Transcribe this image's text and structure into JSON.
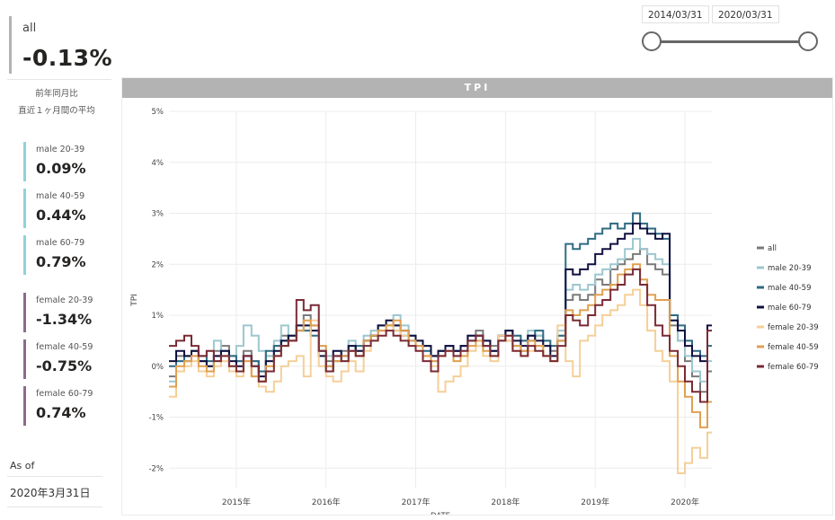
{
  "summary": {
    "label": "all",
    "value": "-0.13%",
    "note_line1": "前年同月比",
    "note_line2": "直近１ヶ月間の平均"
  },
  "kpis": [
    {
      "label": "male 20-39",
      "value": "0.09%"
    },
    {
      "label": "male 40-59",
      "value": "0.44%"
    },
    {
      "label": "male 60-79",
      "value": "0.79%"
    },
    {
      "label": "female 20-39",
      "value": "-1.34%"
    },
    {
      "label": "female 40-59",
      "value": "-0.75%"
    },
    {
      "label": "female 60-79",
      "value": "0.74%"
    }
  ],
  "as_of": {
    "label": "As of",
    "value": "2020年3月31日"
  },
  "date_range": {
    "start": "2014/03/31",
    "end": "2020/03/31"
  },
  "colors": {
    "male_accent": "#8fd3da",
    "female_accent": "#8b6a8c",
    "title_bar": "#b3b3b3"
  },
  "chart_data": {
    "type": "line",
    "title": "TPI",
    "xlabel": "DATE",
    "ylabel": "TPI",
    "ylim": [
      -2.4,
      5
    ],
    "yticks": [
      5,
      4,
      3,
      2,
      1,
      0,
      -1,
      -2
    ],
    "ytick_labels": [
      "5%",
      "4%",
      "3%",
      "2%",
      "1%",
      "0%",
      "-1%",
      "-2%"
    ],
    "xlim": [
      2014.25,
      2020.3
    ],
    "xticks": [
      2015,
      2016,
      2017,
      2018,
      2019,
      2020
    ],
    "xtick_labels": [
      "2015年",
      "2016年",
      "2017年",
      "2018年",
      "2019年",
      "2020年"
    ],
    "step": true,
    "grid": true,
    "legend_position": "right",
    "x": [
      2014.25,
      2014.33,
      2014.42,
      2014.5,
      2014.58,
      2014.67,
      2014.75,
      2014.83,
      2014.92,
      2015.0,
      2015.08,
      2015.17,
      2015.25,
      2015.33,
      2015.42,
      2015.5,
      2015.58,
      2015.67,
      2015.75,
      2015.83,
      2015.92,
      2016.0,
      2016.08,
      2016.17,
      2016.25,
      2016.33,
      2016.42,
      2016.5,
      2016.58,
      2016.67,
      2016.75,
      2016.83,
      2016.92,
      2017.0,
      2017.08,
      2017.17,
      2017.25,
      2017.33,
      2017.42,
      2017.5,
      2017.58,
      2017.67,
      2017.75,
      2017.83,
      2017.92,
      2018.0,
      2018.08,
      2018.17,
      2018.25,
      2018.33,
      2018.42,
      2018.5,
      2018.58,
      2018.67,
      2018.75,
      2018.83,
      2018.92,
      2019.0,
      2019.08,
      2019.17,
      2019.25,
      2019.33,
      2019.42,
      2019.5,
      2019.58,
      2019.67,
      2019.75,
      2019.83,
      2019.92,
      2020.0,
      2020.08,
      2020.17,
      2020.25
    ],
    "series": [
      {
        "name": "all",
        "color": "#7a7a7a",
        "values": [
          -0.2,
          0.2,
          0.1,
          0.3,
          0.1,
          0.0,
          0.3,
          0.4,
          0.2,
          0.1,
          0.3,
          0.1,
          -0.1,
          0.2,
          0.4,
          0.6,
          0.5,
          0.8,
          1.0,
          0.8,
          0.3,
          0.1,
          0.2,
          0.3,
          0.4,
          0.2,
          0.5,
          0.6,
          0.7,
          0.8,
          0.8,
          0.7,
          0.6,
          0.5,
          0.4,
          0.2,
          0.3,
          0.4,
          0.3,
          0.4,
          0.6,
          0.7,
          0.5,
          0.4,
          0.6,
          0.5,
          0.4,
          0.3,
          0.5,
          0.6,
          0.4,
          0.3,
          0.6,
          1.3,
          1.4,
          1.3,
          1.4,
          1.7,
          1.6,
          1.9,
          2.0,
          2.1,
          2.2,
          2.3,
          2.0,
          1.9,
          1.8,
          0.8,
          0.5,
          0.1,
          -0.2,
          -0.5,
          -0.1
        ]
      },
      {
        "name": "male 20-39",
        "color": "#9cc7cf",
        "values": [
          -0.3,
          0.1,
          0.2,
          0.3,
          0.2,
          0.3,
          0.5,
          0.3,
          0.2,
          0.4,
          0.8,
          0.6,
          0.3,
          0.2,
          0.5,
          0.8,
          0.6,
          0.7,
          0.8,
          0.7,
          0.4,
          0.2,
          0.3,
          0.1,
          0.5,
          0.3,
          0.6,
          0.7,
          0.8,
          0.9,
          1.0,
          0.8,
          0.6,
          0.5,
          0.3,
          0.1,
          0.2,
          0.3,
          0.2,
          0.3,
          0.5,
          0.6,
          0.4,
          0.3,
          0.5,
          0.7,
          0.6,
          0.5,
          0.7,
          0.6,
          0.5,
          0.4,
          0.7,
          1.5,
          1.6,
          1.5,
          1.6,
          1.8,
          1.9,
          2.0,
          2.1,
          2.3,
          2.5,
          2.3,
          2.2,
          2.1,
          2.0,
          0.9,
          0.5,
          0.2,
          -0.1,
          -0.3,
          0.1
        ]
      },
      {
        "name": "male 40-59",
        "color": "#2e6b82",
        "values": [
          0.0,
          0.1,
          0.2,
          0.3,
          0.2,
          0.1,
          0.2,
          0.3,
          0.2,
          0.1,
          0.2,
          0.1,
          -0.1,
          0.3,
          0.4,
          0.5,
          0.6,
          0.7,
          0.7,
          0.6,
          0.3,
          0.0,
          0.1,
          0.2,
          0.3,
          0.4,
          0.5,
          0.6,
          0.8,
          0.8,
          0.7,
          0.6,
          0.5,
          0.4,
          0.3,
          0.2,
          0.3,
          0.4,
          0.3,
          0.4,
          0.5,
          0.6,
          0.4,
          0.3,
          0.5,
          0.7,
          0.6,
          0.5,
          0.6,
          0.7,
          0.5,
          0.4,
          0.6,
          2.4,
          2.3,
          2.4,
          2.5,
          2.6,
          2.7,
          2.8,
          2.7,
          2.8,
          3.0,
          2.8,
          2.7,
          2.6,
          2.5,
          1.0,
          0.8,
          0.5,
          0.3,
          0.2,
          0.4
        ]
      },
      {
        "name": "male 60-79",
        "color": "#101040",
        "values": [
          0.1,
          0.3,
          0.2,
          0.3,
          0.1,
          0.0,
          0.2,
          0.3,
          0.1,
          0.0,
          0.2,
          0.0,
          -0.2,
          0.1,
          0.3,
          0.5,
          0.6,
          0.8,
          0.8,
          0.7,
          0.2,
          -0.1,
          0.3,
          0.2,
          0.4,
          0.3,
          0.5,
          0.6,
          0.8,
          0.9,
          0.8,
          0.7,
          0.6,
          0.5,
          0.4,
          0.2,
          0.3,
          0.4,
          0.3,
          0.4,
          0.6,
          0.6,
          0.5,
          0.3,
          0.6,
          0.7,
          0.5,
          0.4,
          0.6,
          0.5,
          0.4,
          0.2,
          0.5,
          1.9,
          1.8,
          1.9,
          2.0,
          2.2,
          2.3,
          2.4,
          2.5,
          2.6,
          2.8,
          2.7,
          2.6,
          2.5,
          2.6,
          0.9,
          0.7,
          0.4,
          0.2,
          0.1,
          0.8
        ]
      },
      {
        "name": "female 20-39",
        "color": "#f5cf98",
        "values": [
          -0.6,
          -0.1,
          0.0,
          0.1,
          -0.1,
          -0.2,
          0.0,
          0.1,
          -0.1,
          -0.2,
          0.1,
          -0.2,
          -0.4,
          -0.5,
          -0.3,
          0.0,
          0.1,
          0.2,
          -0.2,
          0.9,
          0.0,
          -0.2,
          -0.3,
          -0.1,
          0.1,
          -0.1,
          0.3,
          0.5,
          0.7,
          0.8,
          0.7,
          0.6,
          0.4,
          0.3,
          0.2,
          0.0,
          -0.5,
          -0.3,
          -0.2,
          0.0,
          0.3,
          0.4,
          0.2,
          0.1,
          0.6,
          0.5,
          0.3,
          0.2,
          0.3,
          0.4,
          0.2,
          0.1,
          0.8,
          0.1,
          -0.2,
          0.5,
          0.6,
          0.8,
          1.0,
          1.1,
          1.2,
          1.4,
          1.5,
          1.2,
          0.7,
          0.3,
          0.1,
          -0.3,
          -2.1,
          -1.9,
          -1.6,
          -1.8,
          -1.3
        ]
      },
      {
        "name": "female 40-59",
        "color": "#e0a050",
        "values": [
          -0.4,
          0.0,
          0.1,
          0.2,
          0.0,
          -0.1,
          0.1,
          0.2,
          0.0,
          -0.1,
          0.1,
          -0.2,
          -0.3,
          0.0,
          0.2,
          0.4,
          0.5,
          0.7,
          0.9,
          0.8,
          0.4,
          0.0,
          0.1,
          0.2,
          0.3,
          0.2,
          0.5,
          0.6,
          0.7,
          0.8,
          0.9,
          0.7,
          0.5,
          0.4,
          0.2,
          0.1,
          0.2,
          0.3,
          0.1,
          0.2,
          0.4,
          0.5,
          0.3,
          0.2,
          0.5,
          0.6,
          0.4,
          0.3,
          0.5,
          0.4,
          0.2,
          0.1,
          0.5,
          1.1,
          1.0,
          1.1,
          1.2,
          1.4,
          1.5,
          1.6,
          1.8,
          1.9,
          2.0,
          1.7,
          1.4,
          1.3,
          1.3,
          0.2,
          -0.3,
          -0.6,
          -0.9,
          -1.2,
          -0.7
        ]
      },
      {
        "name": "female 60-79",
        "color": "#7a2a34",
        "values": [
          0.4,
          0.5,
          0.6,
          0.4,
          0.2,
          0.3,
          0.1,
          0.2,
          0.0,
          -0.1,
          0.2,
          0.0,
          -0.3,
          -0.1,
          0.2,
          0.4,
          0.5,
          1.3,
          1.1,
          1.2,
          0.3,
          -0.1,
          0.2,
          0.1,
          0.3,
          0.2,
          0.4,
          0.5,
          0.6,
          0.7,
          0.6,
          0.5,
          0.4,
          0.3,
          0.1,
          -0.1,
          0.2,
          0.3,
          0.2,
          0.3,
          0.5,
          0.6,
          0.4,
          0.2,
          0.5,
          0.6,
          0.3,
          0.2,
          0.4,
          0.3,
          0.2,
          0.1,
          0.4,
          1.0,
          0.9,
          0.8,
          1.0,
          1.2,
          1.3,
          1.5,
          1.6,
          1.8,
          1.9,
          1.6,
          1.2,
          0.8,
          0.6,
          0.3,
          0.0,
          -0.3,
          -0.5,
          -0.7,
          0.7
        ]
      }
    ]
  }
}
